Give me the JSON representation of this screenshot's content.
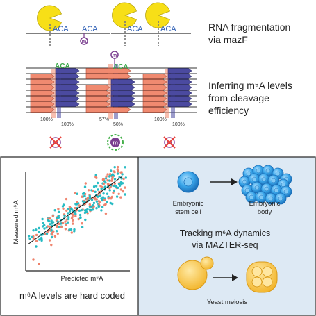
{
  "top": {
    "title_line1": "RNA fragmentation",
    "title_line2": "via mazF",
    "infer_line1": "Inferring m⁶A levels",
    "infer_line2": "from cleavage",
    "infer_line3": "efficiency",
    "motif": "ACA",
    "mod_letter": "m",
    "pct_100": "100%",
    "pct_57": "57%",
    "pct_50": "50%"
  },
  "scatter": {
    "xlabel": "Predicted m⁶A",
    "ylabel": "Measured m⁶A",
    "caption": "m⁶A levels are hard coded",
    "colors": {
      "teal": "#1fb8c1",
      "salmon": "#ee7f68"
    }
  },
  "dynamics": {
    "stem_label_1": "Embryonic",
    "stem_label_2": "stem cell",
    "body_label_1": "Embryonic",
    "body_label_2": "body",
    "title_line1": "Tracking m⁶A dynamics",
    "title_line2": "via MAZTER-seq",
    "yeast_label": "Yeast meiosis"
  },
  "colors": {
    "yellow": "#f7df17",
    "purple": "#7a3d8f",
    "read_salmon": "#f08a70",
    "read_navy": "#4b4aa0",
    "motif_blue": "#2e5fb5",
    "motif_green": "#3ca94a",
    "panel_blue": "#dde9f4",
    "cell_blue": "#2c9ae0"
  }
}
